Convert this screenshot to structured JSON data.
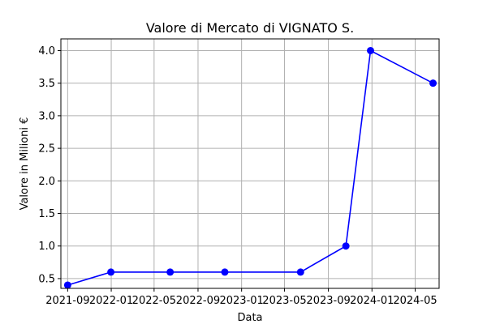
{
  "chart_data": {
    "type": "line",
    "title": "Valore di Mercato di VIGNATO S.",
    "xlabel": "Data",
    "ylabel": "Valore in Milioni €",
    "x_tick_labels": [
      "2021-09",
      "2022-01",
      "2022-05",
      "2022-09",
      "2023-01",
      "2023-05",
      "2023-09",
      "2024-01",
      "2024-05"
    ],
    "y_tick_labels": [
      "0.5",
      "1.0",
      "1.5",
      "2.0",
      "2.5",
      "3.0",
      "3.5",
      "4.0"
    ],
    "y_ticks": [
      0.5,
      1.0,
      1.5,
      2.0,
      2.5,
      3.0,
      3.5,
      4.0
    ],
    "ylim": [
      0.35,
      4.18
    ],
    "xlim": [
      "2021-08-13",
      "2024-07-07"
    ],
    "grid": true,
    "series": [
      {
        "color": "#0000ff",
        "marker": "circle",
        "x": [
          "2021-09-01",
          "2021-12-31",
          "2022-06-15",
          "2022-11-15",
          "2023-06-15",
          "2023-10-20",
          "2023-12-28",
          "2024-06-20"
        ],
        "values": [
          0.4,
          0.6,
          0.6,
          0.6,
          0.6,
          1.0,
          4.0,
          3.5
        ]
      }
    ]
  }
}
